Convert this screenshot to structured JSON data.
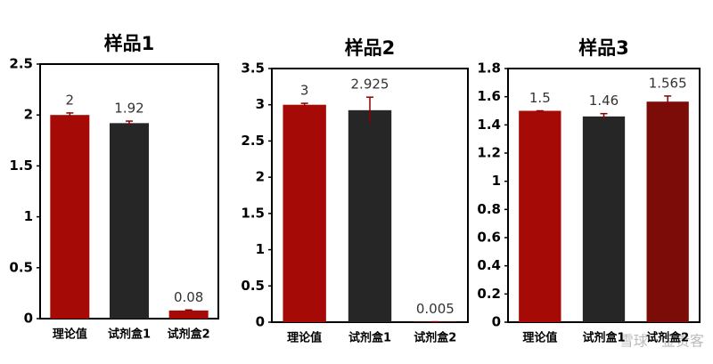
{
  "chart_data": [
    {
      "type": "bar",
      "title": "样品1",
      "categories": [
        "理论值",
        "试剂盒1",
        "试剂盒2"
      ],
      "values": [
        2,
        1.92,
        0.08
      ],
      "errors": [
        0.02,
        0.02,
        0.005
      ],
      "colors": [
        "#a50a06",
        "#262626",
        "#a50a06"
      ],
      "ylim": [
        0,
        2.5
      ],
      "yticks": [
        0,
        0.5,
        1,
        1.5,
        2,
        2.5
      ]
    },
    {
      "type": "bar",
      "title": "样品2",
      "categories": [
        "理论值",
        "试剂盒1",
        "试剂盒2"
      ],
      "values": [
        3,
        2.925,
        0.005
      ],
      "errors": [
        0.02,
        0.18,
        0
      ],
      "colors": [
        "#a50a06",
        "#262626",
        "#a50a06"
      ],
      "ylim": [
        0,
        3.5
      ],
      "yticks": [
        0,
        0.5,
        1,
        1.5,
        2,
        2.5,
        3,
        3.5
      ]
    },
    {
      "type": "bar",
      "title": "样品3",
      "categories": [
        "理论值",
        "试剂盒1",
        "试剂盒2"
      ],
      "values": [
        1.5,
        1.46,
        1.565
      ],
      "errors": [
        0,
        0.02,
        0.04
      ],
      "colors": [
        "#a50a06",
        "#262626",
        "#7b0c08"
      ],
      "ylim": [
        0,
        1.8
      ],
      "yticks": [
        0,
        0.2,
        0.4,
        0.6,
        0.8,
        1,
        1.2,
        1.4,
        1.6,
        1.8
      ]
    }
  ],
  "watermark": "雪球 · 金贵客"
}
